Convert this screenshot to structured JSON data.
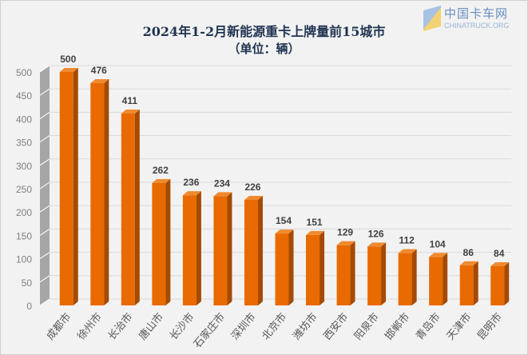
{
  "chart_data": {
    "type": "bar",
    "title": "2024年1-2月新能源重卡上牌量前15城市",
    "subtitle": "（单位：辆）",
    "categories": [
      "成都市",
      "徐州市",
      "长治市",
      "唐山市",
      "长沙市",
      "石家庄市",
      "深圳市",
      "北京市",
      "潍坊市",
      "西安市",
      "阳泉市",
      "邯郸市",
      "青岛市",
      "天津市",
      "昆明市"
    ],
    "values": [
      500,
      476,
      411,
      262,
      236,
      234,
      226,
      154,
      151,
      129,
      126,
      112,
      104,
      86,
      84
    ],
    "ylim": [
      0,
      500
    ],
    "yticks": [
      0,
      50,
      100,
      150,
      200,
      250,
      300,
      350,
      400,
      450,
      500
    ],
    "grid": true,
    "legend": "none",
    "style": "3d-column",
    "colors": {
      "bar_front": "#e86a00",
      "bar_side": "#a54a00",
      "bar_top": "#f08a30",
      "grid": "#d9d9d9",
      "wall": "#a6a6a6"
    }
  },
  "watermark": {
    "name": "中国卡车网",
    "url": "CHINATRUCK.ORG"
  }
}
